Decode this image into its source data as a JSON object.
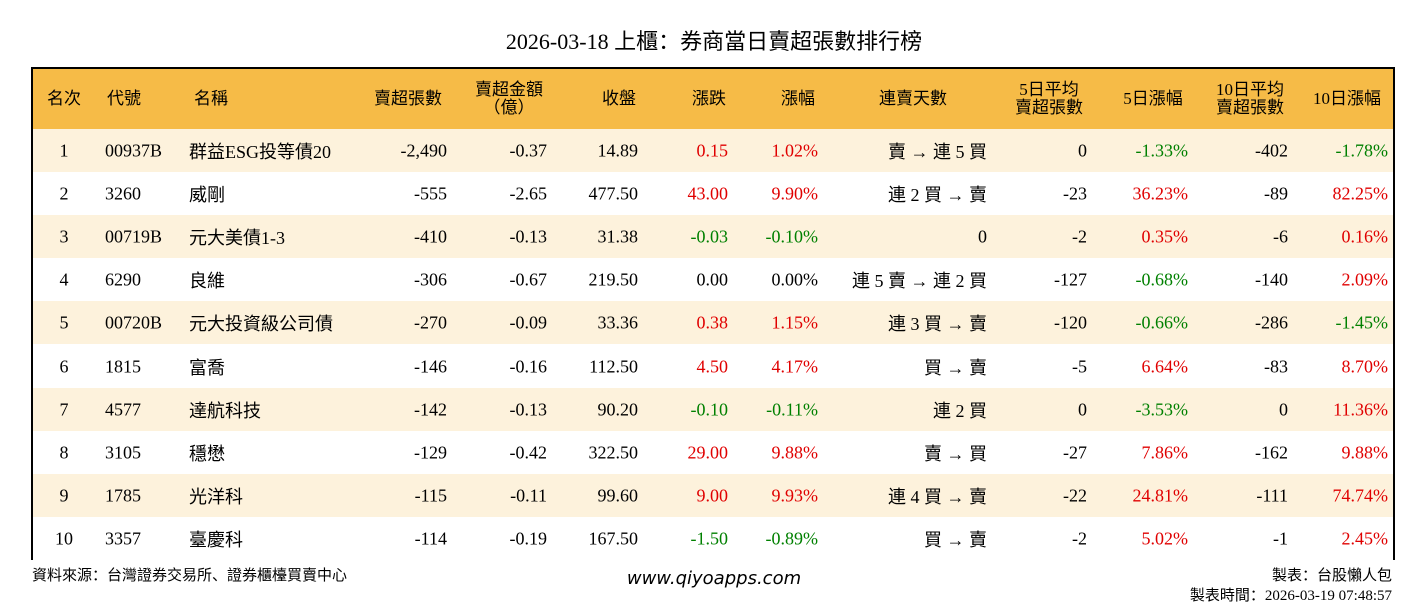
{
  "title": "2026-03-18 上櫃：券商當日賣超張數排行榜",
  "table": {
    "header": [
      [
        "名次"
      ],
      [
        "代號"
      ],
      [
        "名稱"
      ],
      [
        "賣超張數"
      ],
      [
        "賣超金額",
        "（億）"
      ],
      [
        "收盤"
      ],
      [
        "漲跌"
      ],
      [
        "漲幅"
      ],
      [
        "連賣天數"
      ],
      [
        "5日平均",
        "賣超張數"
      ],
      [
        "5日漲幅"
      ],
      [
        "10日平均",
        "賣超張數"
      ],
      [
        "10日漲幅"
      ]
    ],
    "rows": [
      [
        "1",
        "00937B",
        "群益ESG投等債20",
        "-2,490",
        "-0.37",
        "14.89",
        "0.15",
        "1.02%",
        "賣 → 連 5 買",
        "0",
        "-1.33%",
        "-402",
        "-1.78%"
      ],
      [
        "2",
        "3260",
        "威剛",
        "-555",
        "-2.65",
        "477.50",
        "43.00",
        "9.90%",
        "連 2 買 → 賣",
        "-23",
        "36.23%",
        "-89",
        "82.25%"
      ],
      [
        "3",
        "00719B",
        "元大美債1-3",
        "-410",
        "-0.13",
        "31.38",
        "-0.03",
        "-0.10%",
        "0",
        "-2",
        "0.35%",
        "-6",
        "0.16%"
      ],
      [
        "4",
        "6290",
        "良維",
        "-306",
        "-0.67",
        "219.50",
        "0.00",
        "0.00%",
        "連 5 賣 → 連 2 買",
        "-127",
        "-0.68%",
        "-140",
        "2.09%"
      ],
      [
        "5",
        "00720B",
        "元大投資級公司債",
        "-270",
        "-0.09",
        "33.36",
        "0.38",
        "1.15%",
        "連 3 買 → 賣",
        "-120",
        "-0.66%",
        "-286",
        "-1.45%"
      ],
      [
        "6",
        "1815",
        "富喬",
        "-146",
        "-0.16",
        "112.50",
        "4.50",
        "4.17%",
        "買 → 賣",
        "-5",
        "6.64%",
        "-83",
        "8.70%"
      ],
      [
        "7",
        "4577",
        "達航科技",
        "-142",
        "-0.13",
        "90.20",
        "-0.10",
        "-0.11%",
        "連 2 買",
        "0",
        "-3.53%",
        "0",
        "11.36%"
      ],
      [
        "8",
        "3105",
        "穩懋",
        "-129",
        "-0.42",
        "322.50",
        "29.00",
        "9.88%",
        "賣 → 買",
        "-27",
        "7.86%",
        "-162",
        "9.88%"
      ],
      [
        "9",
        "1785",
        "光洋科",
        "-115",
        "-0.11",
        "99.60",
        "9.00",
        "9.93%",
        "連 4 買 → 賣",
        "-22",
        "24.81%",
        "-111",
        "74.74%"
      ],
      [
        "10",
        "3357",
        "臺慶科",
        "-114",
        "-0.19",
        "167.50",
        "-1.50",
        "-0.89%",
        "買 → 賣",
        "-2",
        "5.02%",
        "-1",
        "2.45%"
      ]
    ],
    "colored_columns": [
      6,
      7,
      10,
      12
    ],
    "up_color": "#e00000",
    "down_color": "#008000"
  },
  "footer": {
    "source": "資料來源：台灣證券交易所、證券櫃檯買賣中心",
    "site": "www.qiyoapps.com",
    "maker": "製表：台股懶人包",
    "time": "製表時間：2026-03-19 07:48:57"
  }
}
